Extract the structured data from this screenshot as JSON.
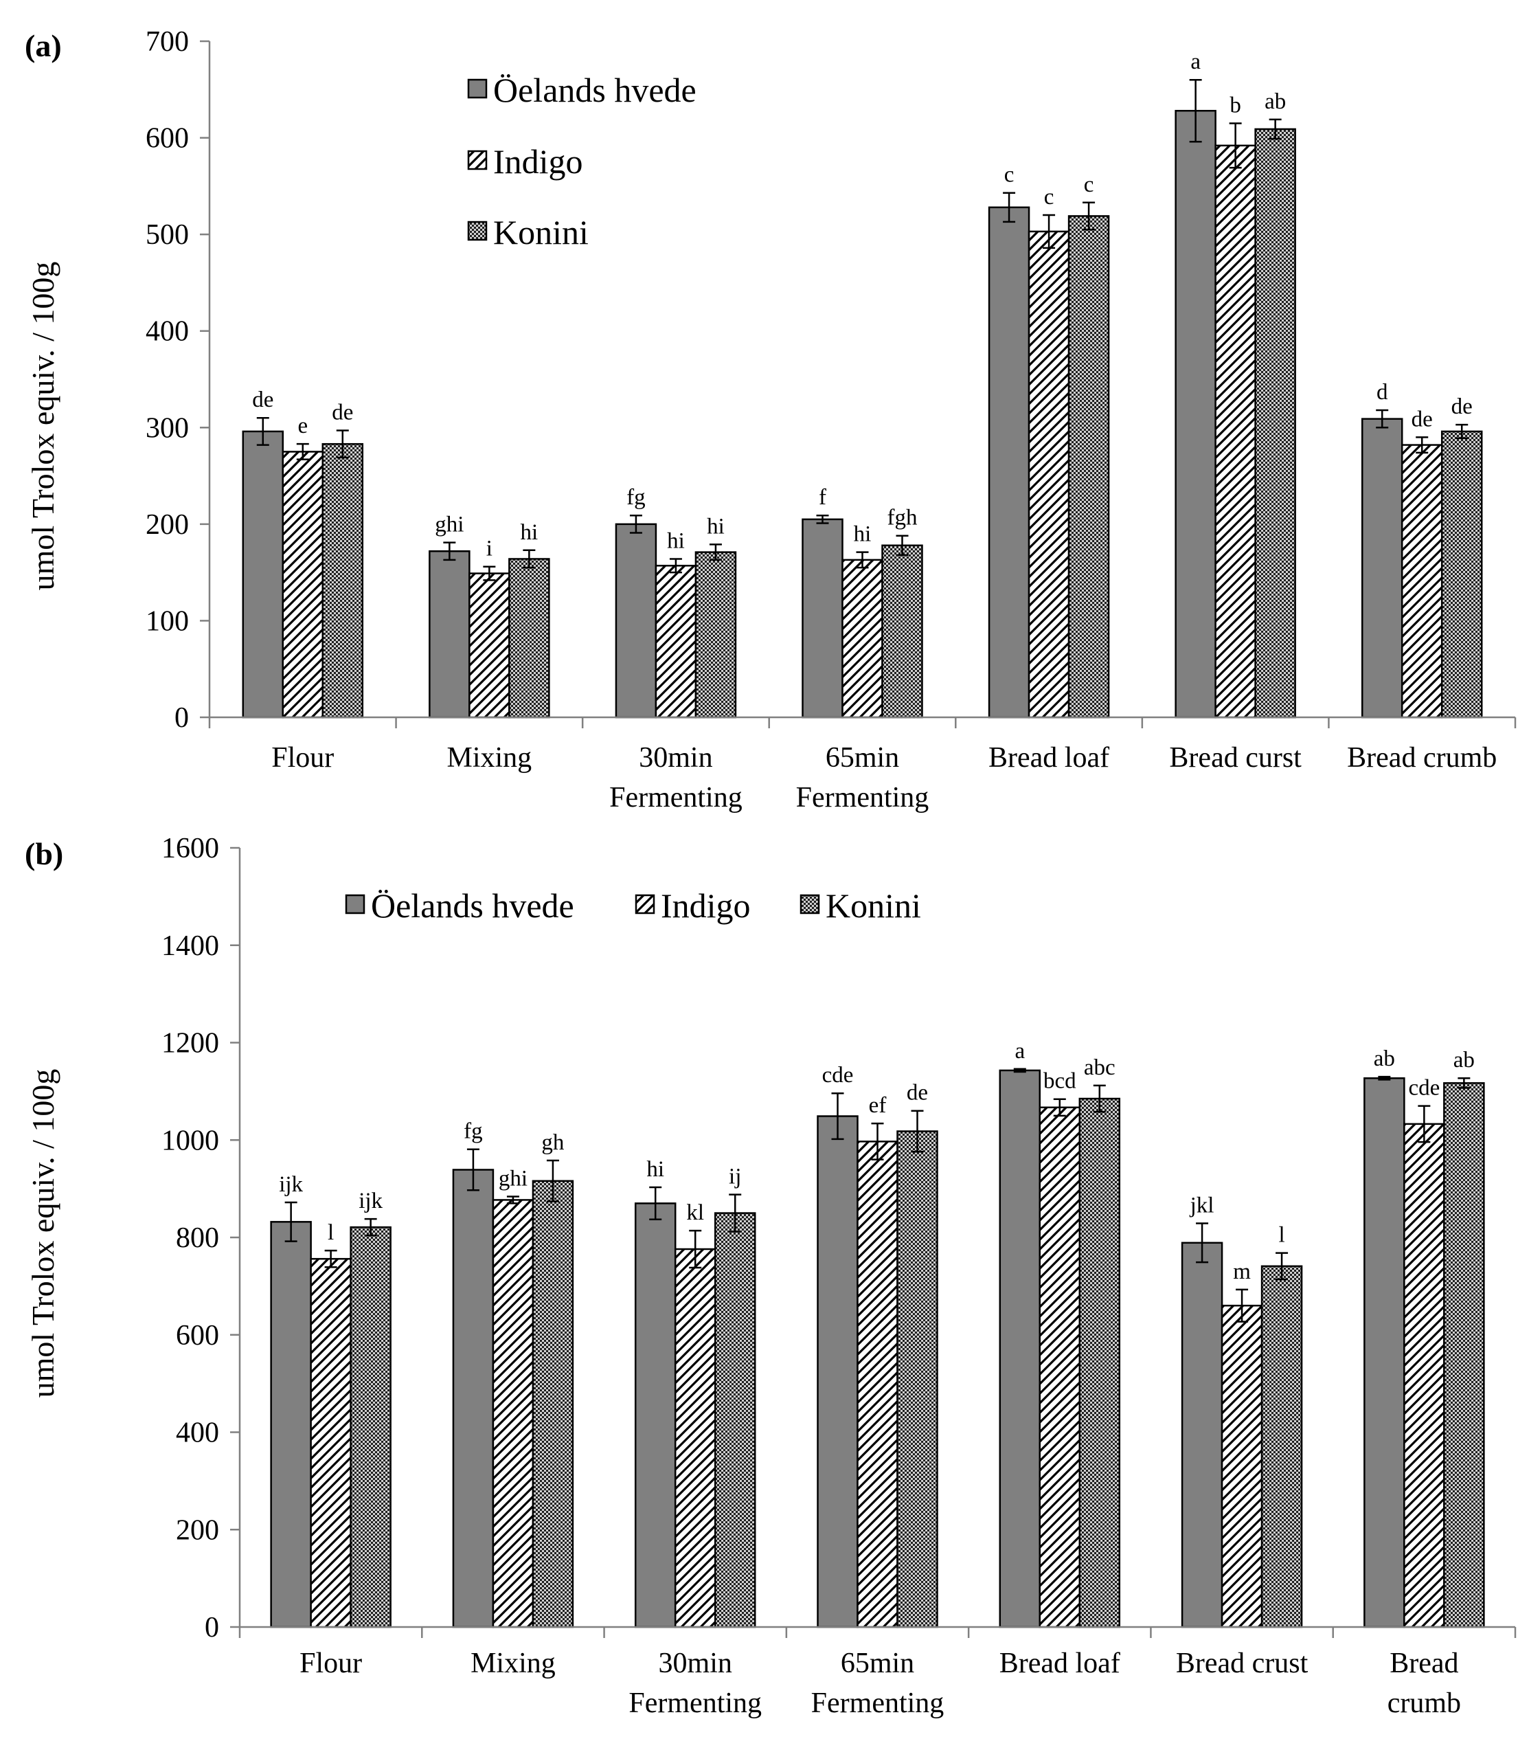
{
  "figure": {
    "legend_series": [
      "Öelands hvede",
      "Indigo",
      "Konini"
    ],
    "pattern_ids": [
      "pat-solid",
      "pat-hatch",
      "pat-check"
    ]
  },
  "chart_data": [
    {
      "panel_label": "(a)",
      "type": "bar",
      "ylabel": "umol Trolox equiv. / 100g",
      "ylim": [
        0,
        700
      ],
      "yticks": [
        "0",
        "100",
        "200",
        "300",
        "400",
        "500",
        "600",
        "700"
      ],
      "categories": [
        [
          "Flour"
        ],
        [
          "Mixing"
        ],
        [
          "30min",
          "Fermenting"
        ],
        [
          "65min",
          "Fermenting"
        ],
        [
          "Bread loaf"
        ],
        [
          "Bread curst"
        ],
        [
          "Bread crumb"
        ]
      ],
      "legend_position": "upper-center",
      "series": [
        {
          "name": "Öelands hvede",
          "values": [
            296,
            172,
            200,
            205,
            528,
            628,
            309
          ],
          "errors": [
            14,
            9,
            9,
            4,
            15,
            32,
            9
          ],
          "labels": [
            "de",
            "ghi",
            "fg",
            "f",
            "c",
            "a",
            "d"
          ]
        },
        {
          "name": "Indigo",
          "values": [
            275,
            149,
            157,
            163,
            503,
            592,
            282
          ],
          "errors": [
            8,
            7,
            7,
            8,
            17,
            23,
            8
          ],
          "labels": [
            "e",
            "i",
            "hi",
            "hi",
            "c",
            "b",
            "de"
          ]
        },
        {
          "name": "Konini",
          "values": [
            283,
            164,
            171,
            178,
            519,
            609,
            296
          ],
          "errors": [
            14,
            9,
            8,
            10,
            14,
            10,
            7
          ],
          "labels": [
            "de",
            "hi",
            "hi",
            "fgh",
            "c",
            "ab",
            "de"
          ]
        }
      ]
    },
    {
      "panel_label": "(b)",
      "type": "bar",
      "ylabel": "umol Trolox equiv. / 100g",
      "ylim": [
        0,
        1600
      ],
      "yticks": [
        "0",
        "200",
        "400",
        "600",
        "800",
        "1000",
        "1200",
        "1400",
        "1600"
      ],
      "categories": [
        [
          "Flour"
        ],
        [
          "Mixing"
        ],
        [
          "30min",
          "Fermenting"
        ],
        [
          "65min",
          "Fermenting"
        ],
        [
          "Bread loaf"
        ],
        [
          "Bread crust"
        ],
        [
          "Bread",
          "crumb"
        ]
      ],
      "legend_position": "top-left",
      "series": [
        {
          "name": "Öelands hvede",
          "values": [
            832,
            939,
            870,
            1049,
            1143,
            789,
            1127
          ],
          "errors": [
            40,
            42,
            33,
            47,
            3,
            40,
            3
          ],
          "labels": [
            "ijk",
            "fg",
            "hi",
            "cde",
            "a",
            "jkl",
            "ab"
          ]
        },
        {
          "name": "Indigo",
          "values": [
            756,
            877,
            776,
            997,
            1067,
            660,
            1033
          ],
          "errors": [
            17,
            7,
            38,
            37,
            17,
            33,
            37
          ],
          "labels": [
            "l",
            "ghi",
            "kl",
            "ef",
            "bcd",
            "m",
            "cde"
          ]
        },
        {
          "name": "Konini",
          "values": [
            821,
            916,
            850,
            1018,
            1085,
            741,
            1117
          ],
          "errors": [
            17,
            42,
            38,
            42,
            27,
            27,
            10
          ],
          "labels": [
            "ijk",
            "gh",
            "ij",
            "de",
            "abc",
            "l",
            "ab"
          ]
        }
      ]
    }
  ]
}
